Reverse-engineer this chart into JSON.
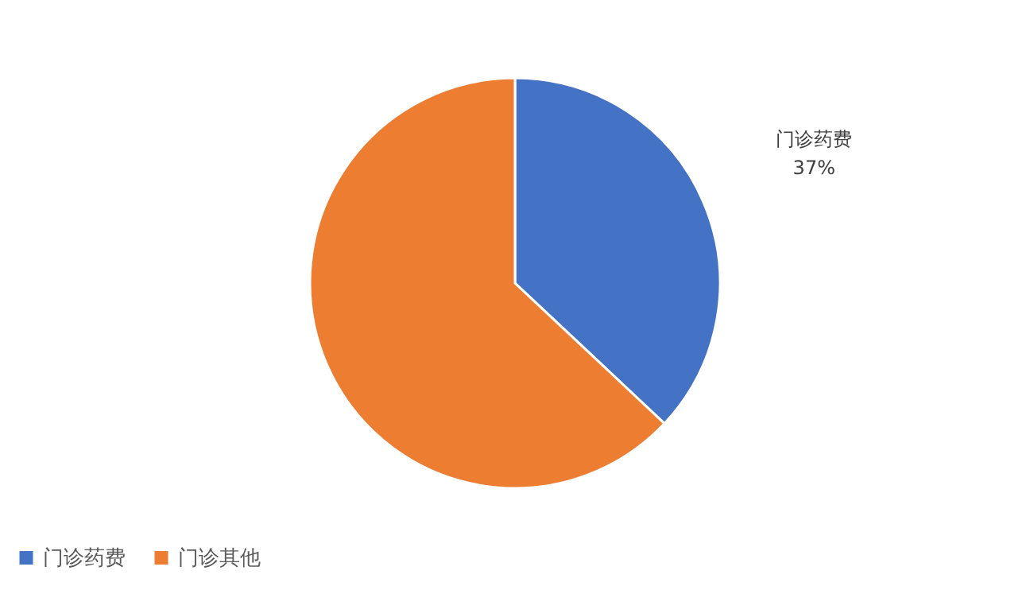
{
  "chart_data": {
    "type": "pie",
    "categories": [
      "门诊药费",
      "门诊其他"
    ],
    "values": [
      37,
      63
    ],
    "colors": [
      "#4472c4",
      "#ed7d31"
    ],
    "value_labels": [
      "37%",
      null
    ],
    "legend": "bottom"
  }
}
